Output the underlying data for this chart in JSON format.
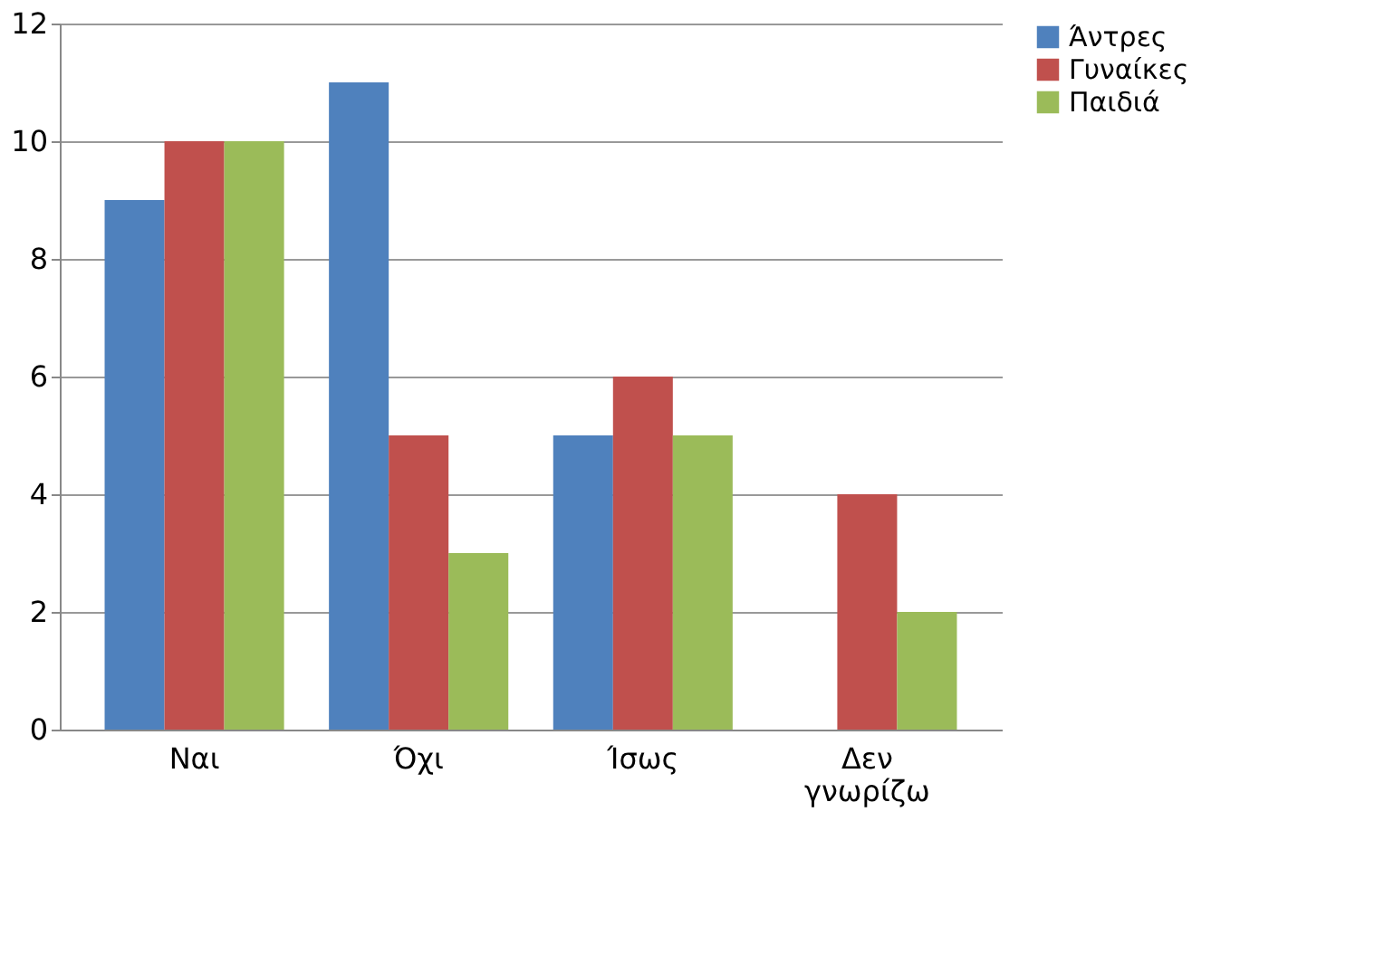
{
  "chart_data": {
    "type": "bar",
    "categories": [
      "Ναι",
      "Όχι",
      "Ίσως",
      "Δεν γνωρίζω"
    ],
    "series": [
      {
        "name": "Άντρες",
        "color": "#4f81bd",
        "values": [
          9,
          11,
          5,
          0
        ]
      },
      {
        "name": "Γυναίκες",
        "color": "#c0504d",
        "values": [
          10,
          5,
          6,
          4
        ]
      },
      {
        "name": "Παιδιά",
        "color": "#9bbb59",
        "values": [
          10,
          3,
          5,
          2
        ]
      }
    ],
    "ylim": [
      0,
      12
    ],
    "yticks": [
      0,
      2,
      4,
      6,
      8,
      10,
      12
    ],
    "grid": "y",
    "legend": "right"
  }
}
